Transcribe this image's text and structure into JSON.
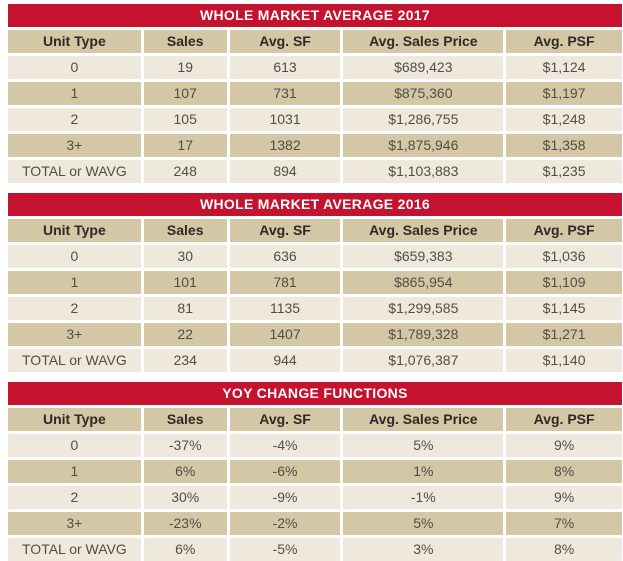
{
  "colors": {
    "title_bar_red": "#c5122e",
    "title_text": "#ffffff",
    "header_row_tan": "#d4c7a5",
    "row_cream": "#eee9dc",
    "row_tan": "#d4c7a5",
    "header_text": "#2d2a26",
    "cell_text": "#514e46"
  },
  "chart_data": [
    {
      "type": "table",
      "title": "WHOLE MARKET AVERAGE 2017",
      "columns": [
        "Unit Type",
        "Sales",
        "Avg. SF",
        "Avg. Sales Price",
        "Avg. PSF"
      ],
      "rows": [
        [
          "0",
          "19",
          "613",
          "$689,423",
          "$1,124"
        ],
        [
          "1",
          "107",
          "731",
          "$875,360",
          "$1,197"
        ],
        [
          "2",
          "105",
          "1031",
          "$1,286,755",
          "$1,248"
        ],
        [
          "3+",
          "17",
          "1382",
          "$1,875,946",
          "$1,358"
        ],
        [
          "TOTAL or WAVG",
          "248",
          "894",
          "$1,103,883",
          "$1,235"
        ]
      ]
    },
    {
      "type": "table",
      "title": "WHOLE MARKET AVERAGE 2016",
      "columns": [
        "Unit Type",
        "Sales",
        "Avg. SF",
        "Avg. Sales Price",
        "Avg. PSF"
      ],
      "rows": [
        [
          "0",
          "30",
          "636",
          "$659,383",
          "$1,036"
        ],
        [
          "1",
          "101",
          "781",
          "$865,954",
          "$1,109"
        ],
        [
          "2",
          "81",
          "1135",
          "$1,299,585",
          "$1,145"
        ],
        [
          "3+",
          "22",
          "1407",
          "$1,789,328",
          "$1,271"
        ],
        [
          "TOTAL or WAVG",
          "234",
          "944",
          "$1,076,387",
          "$1,140"
        ]
      ]
    },
    {
      "type": "table",
      "title": "YOY CHANGE FUNCTIONS",
      "columns": [
        "Unit Type",
        "Sales",
        "Avg. SF",
        "Avg. Sales Price",
        "Avg. PSF"
      ],
      "rows": [
        [
          "0",
          "-37%",
          "-4%",
          "5%",
          "9%"
        ],
        [
          "1",
          "6%",
          "-6%",
          "1%",
          "8%"
        ],
        [
          "2",
          "30%",
          "-9%",
          "-1%",
          "9%"
        ],
        [
          "3+",
          "-23%",
          "-2%",
          "5%",
          "7%"
        ],
        [
          "TOTAL or WAVG",
          "6%",
          "-5%",
          "3%",
          "8%"
        ]
      ]
    }
  ]
}
